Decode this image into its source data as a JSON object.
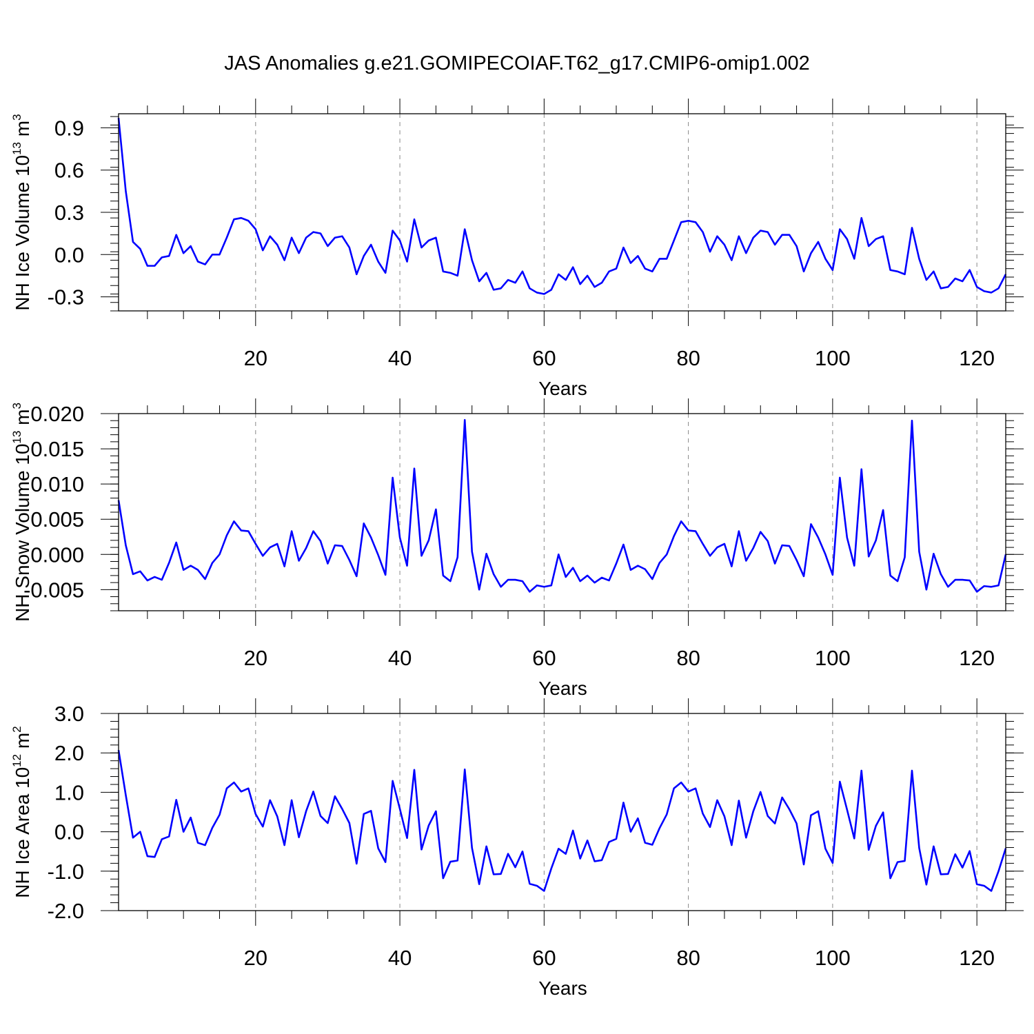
{
  "title": "JAS Anomalies g.e21.GOMIPECOIAF.T62_g17.CMIP6-omip1.002",
  "chart_data": [
    {
      "type": "line",
      "title": "",
      "xlabel": "Years",
      "ylabel": {
        "base": "NH Ice Volume 10",
        "exp": "13",
        "unit": " m",
        "unit_exp": "3"
      },
      "xlim": [
        1,
        124
      ],
      "ylim": [
        -0.4,
        1.0
      ],
      "xticks": [
        20,
        40,
        60,
        80,
        100,
        120
      ],
      "yticks": [
        -0.3,
        0.0,
        0.3,
        0.6,
        0.9
      ],
      "ytick_labels": [
        "-0.3",
        "0.0",
        "0.3",
        "0.6",
        "0.9"
      ],
      "grid": "vertical-dashed",
      "series": [
        {
          "color": "#0000ff",
          "x_start": 1,
          "values": [
            0.97,
            0.45,
            0.09,
            0.04,
            -0.08,
            -0.08,
            -0.02,
            -0.01,
            0.14,
            0.01,
            0.06,
            -0.05,
            -0.07,
            0.0,
            0.0,
            0.12,
            0.25,
            0.26,
            0.24,
            0.18,
            0.03,
            0.13,
            0.07,
            -0.04,
            0.12,
            0.01,
            0.12,
            0.16,
            0.15,
            0.06,
            0.12,
            0.13,
            0.05,
            -0.14,
            -0.01,
            0.07,
            -0.05,
            -0.13,
            0.17,
            0.1,
            -0.05,
            0.25,
            0.05,
            0.1,
            0.12,
            -0.12,
            -0.13,
            -0.15,
            0.18,
            -0.04,
            -0.19,
            -0.13,
            -0.25,
            -0.24,
            -0.18,
            -0.2,
            -0.12,
            -0.24,
            -0.27,
            -0.28,
            -0.25,
            -0.14,
            -0.18,
            -0.09,
            -0.21,
            -0.15,
            -0.23,
            -0.2,
            -0.12,
            -0.1,
            0.05,
            -0.06,
            -0.01,
            -0.1,
            -0.12,
            -0.03,
            -0.03,
            0.1,
            0.23,
            0.24,
            0.23,
            0.16,
            0.02,
            0.13,
            0.07,
            -0.04,
            0.13,
            0.01,
            0.12,
            0.17,
            0.16,
            0.07,
            0.14,
            0.14,
            0.06,
            -0.12,
            0.01,
            0.09,
            -0.03,
            -0.11,
            0.18,
            0.11,
            -0.03,
            0.26,
            0.06,
            0.11,
            0.13,
            -0.11,
            -0.12,
            -0.14,
            0.19,
            -0.03,
            -0.18,
            -0.12,
            -0.24,
            -0.23,
            -0.17,
            -0.19,
            -0.11,
            -0.23,
            -0.26,
            -0.27,
            -0.24,
            -0.14
          ]
        }
      ]
    },
    {
      "type": "line",
      "title": "",
      "xlabel": "Years",
      "ylabel": {
        "base": "NH Snow Volume 10",
        "exp": "13",
        "unit": " m",
        "unit_exp": "3"
      },
      "xlim": [
        1,
        124
      ],
      "ylim": [
        -0.008,
        0.02
      ],
      "xticks": [
        20,
        40,
        60,
        80,
        100,
        120
      ],
      "yticks": [
        -0.005,
        0.0,
        0.005,
        0.01,
        0.015,
        0.02
      ],
      "ytick_labels": [
        "-0.005",
        "0.000",
        "0.005",
        "0.010",
        "0.015",
        "0.020"
      ],
      "grid": "vertical-dashed",
      "series": [
        {
          "color": "#0000ff",
          "x_start": 1,
          "values": [
            0.0077,
            0.0013,
            -0.0028,
            -0.0024,
            -0.0037,
            -0.0032,
            -0.0036,
            -0.0012,
            0.0017,
            -0.0022,
            -0.0016,
            -0.0022,
            -0.0035,
            -0.0012,
            0.0,
            0.0027,
            0.0047,
            0.0034,
            0.0033,
            0.0015,
            -0.0002,
            0.001,
            0.0015,
            -0.0017,
            0.0033,
            -0.0009,
            0.0009,
            0.0033,
            0.0019,
            -0.0013,
            0.0013,
            0.0012,
            -0.0008,
            -0.0031,
            0.0044,
            0.0024,
            -0.0001,
            -0.0029,
            0.0109,
            0.0024,
            -0.0016,
            0.0122,
            -0.0002,
            0.002,
            0.0064,
            -0.003,
            -0.0038,
            -0.0004,
            0.0191,
            0.0004,
            -0.005,
            0.0001,
            -0.0028,
            -0.0046,
            -0.0036,
            -0.0036,
            -0.0038,
            -0.0053,
            -0.0044,
            -0.0046,
            -0.0044,
            0.0,
            -0.0032,
            -0.0019,
            -0.0038,
            -0.003,
            -0.004,
            -0.0033,
            -0.0037,
            -0.0013,
            0.0014,
            -0.0022,
            -0.0016,
            -0.0021,
            -0.0035,
            -0.0012,
            0.0,
            0.0026,
            0.0047,
            0.0034,
            0.0033,
            0.0015,
            -0.0002,
            0.001,
            0.0015,
            -0.0017,
            0.0033,
            -0.0009,
            0.0009,
            0.0032,
            0.0019,
            -0.0013,
            0.0013,
            0.0012,
            -0.0008,
            -0.0031,
            0.0043,
            0.0024,
            0.0,
            -0.0029,
            0.0109,
            0.0024,
            -0.0016,
            0.0121,
            -0.0003,
            0.002,
            0.0063,
            -0.003,
            -0.0038,
            -0.0004,
            0.019,
            0.0004,
            -0.005,
            0.0001,
            -0.0028,
            -0.0046,
            -0.0036,
            -0.0036,
            -0.0037,
            -0.0053,
            -0.0045,
            -0.0046,
            -0.0044,
            0.0
          ]
        }
      ]
    },
    {
      "type": "line",
      "title": "",
      "xlabel": "Years",
      "ylabel": {
        "base": "NH Ice Area 10",
        "exp": "12",
        "unit": " m",
        "unit_exp": "2"
      },
      "xlim": [
        1,
        124
      ],
      "ylim": [
        -2.0,
        3.0
      ],
      "xticks": [
        20,
        40,
        60,
        80,
        100,
        120
      ],
      "yticks": [
        -2.0,
        -1.0,
        0.0,
        1.0,
        2.0,
        3.0
      ],
      "ytick_labels": [
        "-2.0",
        "-1.0",
        "0.0",
        "1.0",
        "2.0",
        "3.0"
      ],
      "grid": "vertical-dashed",
      "series": [
        {
          "color": "#0000ff",
          "x_start": 1,
          "values": [
            2.07,
            0.93,
            -0.15,
            0.0,
            -0.62,
            -0.64,
            -0.19,
            -0.12,
            0.81,
            0.0,
            0.36,
            -0.28,
            -0.34,
            0.1,
            0.43,
            1.1,
            1.25,
            1.02,
            1.1,
            0.45,
            0.13,
            0.8,
            0.39,
            -0.34,
            0.8,
            -0.14,
            0.52,
            1.02,
            0.4,
            0.22,
            0.9,
            0.58,
            0.22,
            -0.81,
            0.45,
            0.53,
            -0.42,
            -0.77,
            1.29,
            0.58,
            -0.16,
            1.57,
            -0.45,
            0.16,
            0.52,
            -1.18,
            -0.76,
            -0.73,
            1.58,
            -0.41,
            -1.33,
            -0.37,
            -1.08,
            -1.07,
            -0.56,
            -0.9,
            -0.5,
            -1.32,
            -1.37,
            -1.5,
            -0.93,
            -0.43,
            -0.56,
            0.03,
            -0.68,
            -0.22,
            -0.75,
            -0.72,
            -0.26,
            -0.18,
            0.74,
            0.0,
            0.34,
            -0.28,
            -0.33,
            0.09,
            0.44,
            1.1,
            1.25,
            1.02,
            1.1,
            0.46,
            0.12,
            0.8,
            0.39,
            -0.34,
            0.79,
            -0.15,
            0.52,
            1.01,
            0.4,
            0.21,
            0.87,
            0.57,
            0.21,
            -0.83,
            0.42,
            0.52,
            -0.43,
            -0.79,
            1.27,
            0.56,
            -0.17,
            1.55,
            -0.46,
            0.15,
            0.49,
            -1.18,
            -0.77,
            -0.74,
            1.55,
            -0.41,
            -1.34,
            -0.37,
            -1.08,
            -1.07,
            -0.57,
            -0.91,
            -0.49,
            -1.33,
            -1.37,
            -1.5,
            -1.0,
            -0.42
          ]
        }
      ]
    }
  ]
}
